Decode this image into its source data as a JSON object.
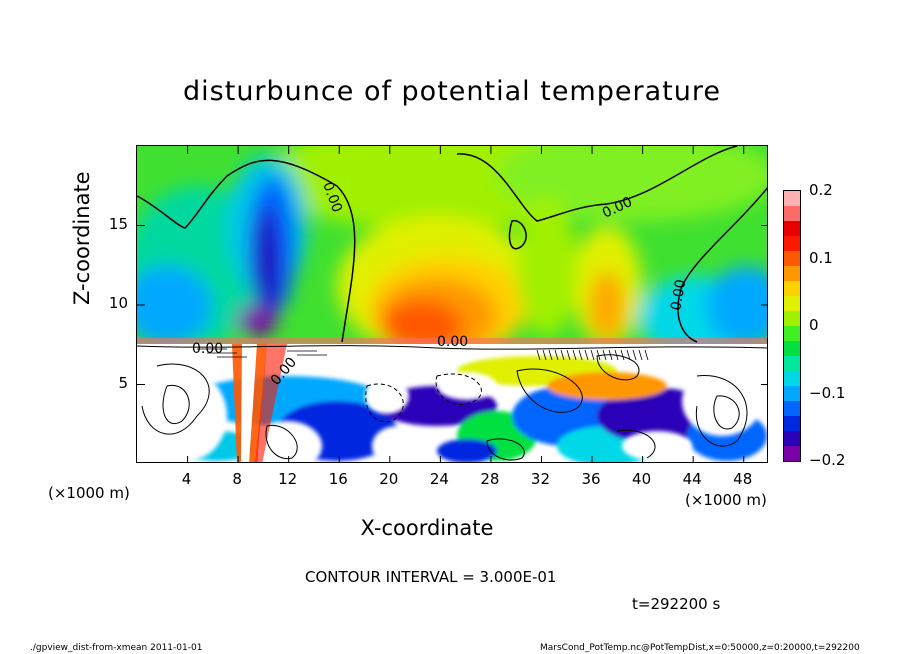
{
  "chart_data": {
    "type": "heatmap",
    "title": "disturbunce of potential temperature",
    "xlabel": "X-coordinate",
    "ylabel": "Z-coordinate",
    "x_unit_label": "(×1000 m)",
    "xlim": [
      0,
      50
    ],
    "ylim": [
      0,
      20
    ],
    "x_ticks": [
      4,
      8,
      12,
      16,
      20,
      24,
      28,
      32,
      36,
      40,
      44,
      48
    ],
    "y_ticks": [
      5,
      10,
      15
    ],
    "colorbar": {
      "range": [
        -0.2,
        0.2
      ],
      "ticks": [
        {
          "value": 0.2,
          "label": "0.2"
        },
        {
          "value": 0.1,
          "label": "0.1"
        },
        {
          "value": 0,
          "label": "0"
        },
        {
          "value": -0.1,
          "label": "−0.1"
        },
        {
          "value": -0.2,
          "label": "−0.2"
        }
      ],
      "colors": [
        "#7a00a8",
        "#2a00b8",
        "#0028e0",
        "#0066ff",
        "#00a8ff",
        "#00d8e8",
        "#00e8a0",
        "#00e040",
        "#40f020",
        "#a0f000",
        "#e0f000",
        "#ffd000",
        "#ff9800",
        "#ff5800",
        "#ff1800",
        "#e80000",
        "#ff6a6a",
        "#ffb0b0"
      ]
    },
    "contour_labels": [
      "0.00",
      "0.00",
      "0.00",
      "0.00",
      "0.00",
      "0.00"
    ],
    "contour_interval": "CONTOUR INTERVAL = 3.000E-01",
    "time": "t=292200 s"
  },
  "footer": {
    "left": "./gpview_dist-from-xmean  2011-01-01",
    "right": "MarsCond_PotTemp.nc@PotTempDist,x=0:50000,z=0:20000,t=292200"
  }
}
